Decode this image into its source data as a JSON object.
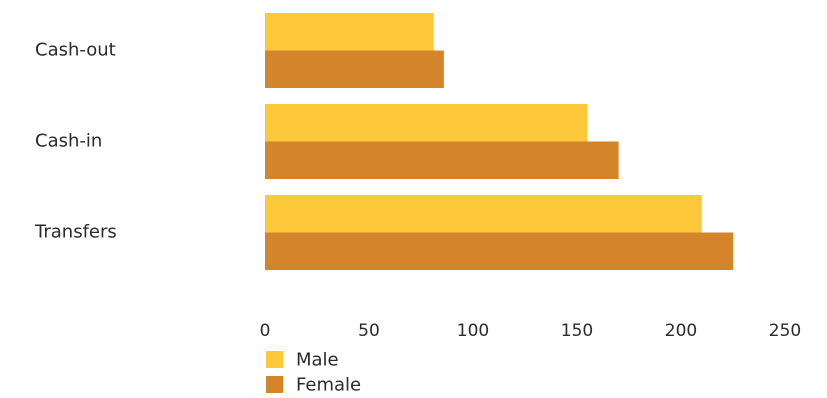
{
  "chart_data": {
    "type": "bar",
    "orientation": "horizontal",
    "categories": [
      "Cash-out",
      "Cash-in",
      "Transfers"
    ],
    "series": [
      {
        "name": "Male",
        "values": [
          81,
          155,
          210
        ],
        "color": "#FDC93B"
      },
      {
        "name": "Female",
        "values": [
          86,
          170,
          225
        ],
        "color": "#D4852C"
      }
    ],
    "xlim": [
      0,
      250
    ],
    "x_ticks": [
      "0",
      "50",
      "100",
      "150",
      "200",
      "250"
    ],
    "title": "",
    "xlabel": "",
    "ylabel": "",
    "grid": false,
    "legend_position": "bottom-left"
  }
}
